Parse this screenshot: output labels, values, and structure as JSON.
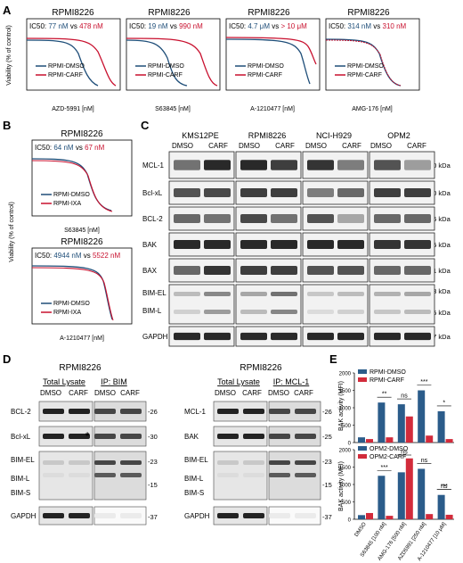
{
  "panel_labels": {
    "a": "A",
    "b": "B",
    "c": "C",
    "d": "D",
    "e": "E"
  },
  "colors": {
    "dmso": "#1f4e79",
    "treated": "#c8102e",
    "blot_dark": "#1a1a1a",
    "bar_blue": "#2b5c8a",
    "bar_red": "#d22b3b"
  },
  "curve_legend": {
    "dmso": "RPMI-DMSO",
    "carf": "RPMI-CARF",
    "ixa": "RPMI-IXA"
  },
  "y_axis_label": "Viability (% of control)",
  "y_ticks": [
    "0",
    "50",
    "100"
  ],
  "panel_a": [
    {
      "title": "RPMI8226",
      "ic50_label": "IC50:",
      "ic50_a": "77 nM",
      "vs": "vs",
      "ic50_b": "478 nM",
      "xlabel": "AZD-5991 [nM]"
    },
    {
      "title": "RPMI8226",
      "ic50_label": "IC50:",
      "ic50_a": "19 nM",
      "vs": "vs",
      "ic50_b": "990 nM",
      "xlabel": "S63845 [nM]"
    },
    {
      "title": "RPMI8226",
      "ic50_label": "IC50:",
      "ic50_a": "4.7 μM",
      "vs": "vs",
      "ic50_b": "> 10 μM",
      "xlabel": "A-1210477 [nM]"
    },
    {
      "title": "RPMI8226",
      "ic50_label": "IC50:",
      "ic50_a": "314 nM",
      "vs": "vs",
      "ic50_b": "310 nM",
      "xlabel": "AMG-176 [nM]"
    }
  ],
  "panel_b": [
    {
      "title": "RPMI8226",
      "ic50_label": "IC50:",
      "ic50_a": "64 nM",
      "vs": "vs",
      "ic50_b": "67 nM",
      "xlabel": "S63845 [nM]"
    },
    {
      "title": "RPMI8226",
      "ic50_label": "IC50:",
      "ic50_a": "4944 nM",
      "vs": "vs",
      "ic50_b": "5522 nM",
      "xlabel": "A-1210477 [nM]"
    }
  ],
  "panel_c": {
    "cell_lines": [
      "KMS12PE",
      "RPMI8226",
      "NCI-H929",
      "OPM2"
    ],
    "lane_dmso": "DMSO",
    "lane_carf": "CARF",
    "proteins": [
      {
        "name": "MCL-1",
        "kda": "40 kDa"
      },
      {
        "name": "Bcl-xL",
        "kda": "30 kDa"
      },
      {
        "name": "BCL-2",
        "kda": "26 kDa"
      },
      {
        "name": "BAK",
        "kda": "25 kDa"
      },
      {
        "name": "BAX",
        "kda": "21 kDa"
      },
      {
        "name": "BIM-EL",
        "kda": "23 kDa"
      },
      {
        "name": "BIM-L",
        "kda": "15 kDa"
      },
      {
        "name": "GAPDH",
        "kda": "37 kDa"
      }
    ]
  },
  "panel_d": {
    "left": {
      "title": "RPMI8226",
      "group1": "Total Lysate",
      "group2": "IP: BIM",
      "proteins": [
        "BCL-2",
        "Bcl-xL",
        "BIM-EL",
        "BIM-L",
        "BIM-S",
        "GAPDH"
      ],
      "markers": [
        "-26",
        "-30",
        "-23",
        "-15",
        "-37"
      ],
      "star": "*"
    },
    "right": {
      "title": "RPMI8226",
      "group1": "Total Lysate",
      "group2": "IP: MCL-1",
      "proteins": [
        "MCL-1",
        "BAK",
        "BIM-EL",
        "BIM-L",
        "BIM-S",
        "GAPDH"
      ],
      "markers": [
        "-26",
        "-25",
        "-23",
        "-15",
        "-37"
      ]
    },
    "lane_dmso": "DMSO",
    "lane_carf": "CARF"
  },
  "panel_e": {
    "ylabel": "BAK activity (MFI)",
    "top": {
      "legend": [
        "RPMI-DMSO",
        "RPMI-CARF"
      ],
      "y_ticks": [
        "0",
        "500",
        "1000",
        "1500",
        "2000"
      ],
      "sig": [
        "**",
        "ns",
        "***",
        "*"
      ]
    },
    "bottom": {
      "legend": [
        "OPM2-DMSO",
        "OPM2-CARF"
      ],
      "y_ticks": [
        "0",
        "500",
        "1000",
        "1500",
        "2000"
      ],
      "sig": [
        "***",
        "ns",
        "ns",
        "***",
        "ns"
      ]
    },
    "x_categories": [
      "DMSO",
      "S63845 [100 nM]",
      "AMG-176 [500 nM]",
      "AZD5991 [250 nM]",
      "A-1210477 [10 μM]"
    ]
  },
  "chart_data": [
    {
      "type": "bar",
      "title": "",
      "ylabel": "BAK activity (MFI)",
      "ylim": [
        0,
        2000
      ],
      "categories": [
        "DMSO",
        "S63845 [100 nM]",
        "AMG-176 [500 nM]",
        "AZD5991 [250 nM]",
        "A-1210477 [10 μM]"
      ],
      "series": [
        {
          "name": "RPMI-DMSO",
          "values": [
            150,
            1150,
            1100,
            1500,
            900
          ]
        },
        {
          "name": "RPMI-CARF",
          "values": [
            100,
            150,
            750,
            200,
            100
          ]
        }
      ]
    },
    {
      "type": "bar",
      "title": "",
      "ylabel": "BAK activity (MFI)",
      "ylim": [
        0,
        2000
      ],
      "categories": [
        "DMSO",
        "S63845 [100 nM]",
        "AMG-176 [500 nM]",
        "AZD5991 [250 nM]",
        "A-1210477 [10 μM]"
      ],
      "series": [
        {
          "name": "OPM2-DMSO",
          "values": [
            120,
            1250,
            1350,
            1450,
            700
          ]
        },
        {
          "name": "OPM2-CARF",
          "values": [
            180,
            100,
            1750,
            150,
            130
          ]
        }
      ]
    }
  ]
}
